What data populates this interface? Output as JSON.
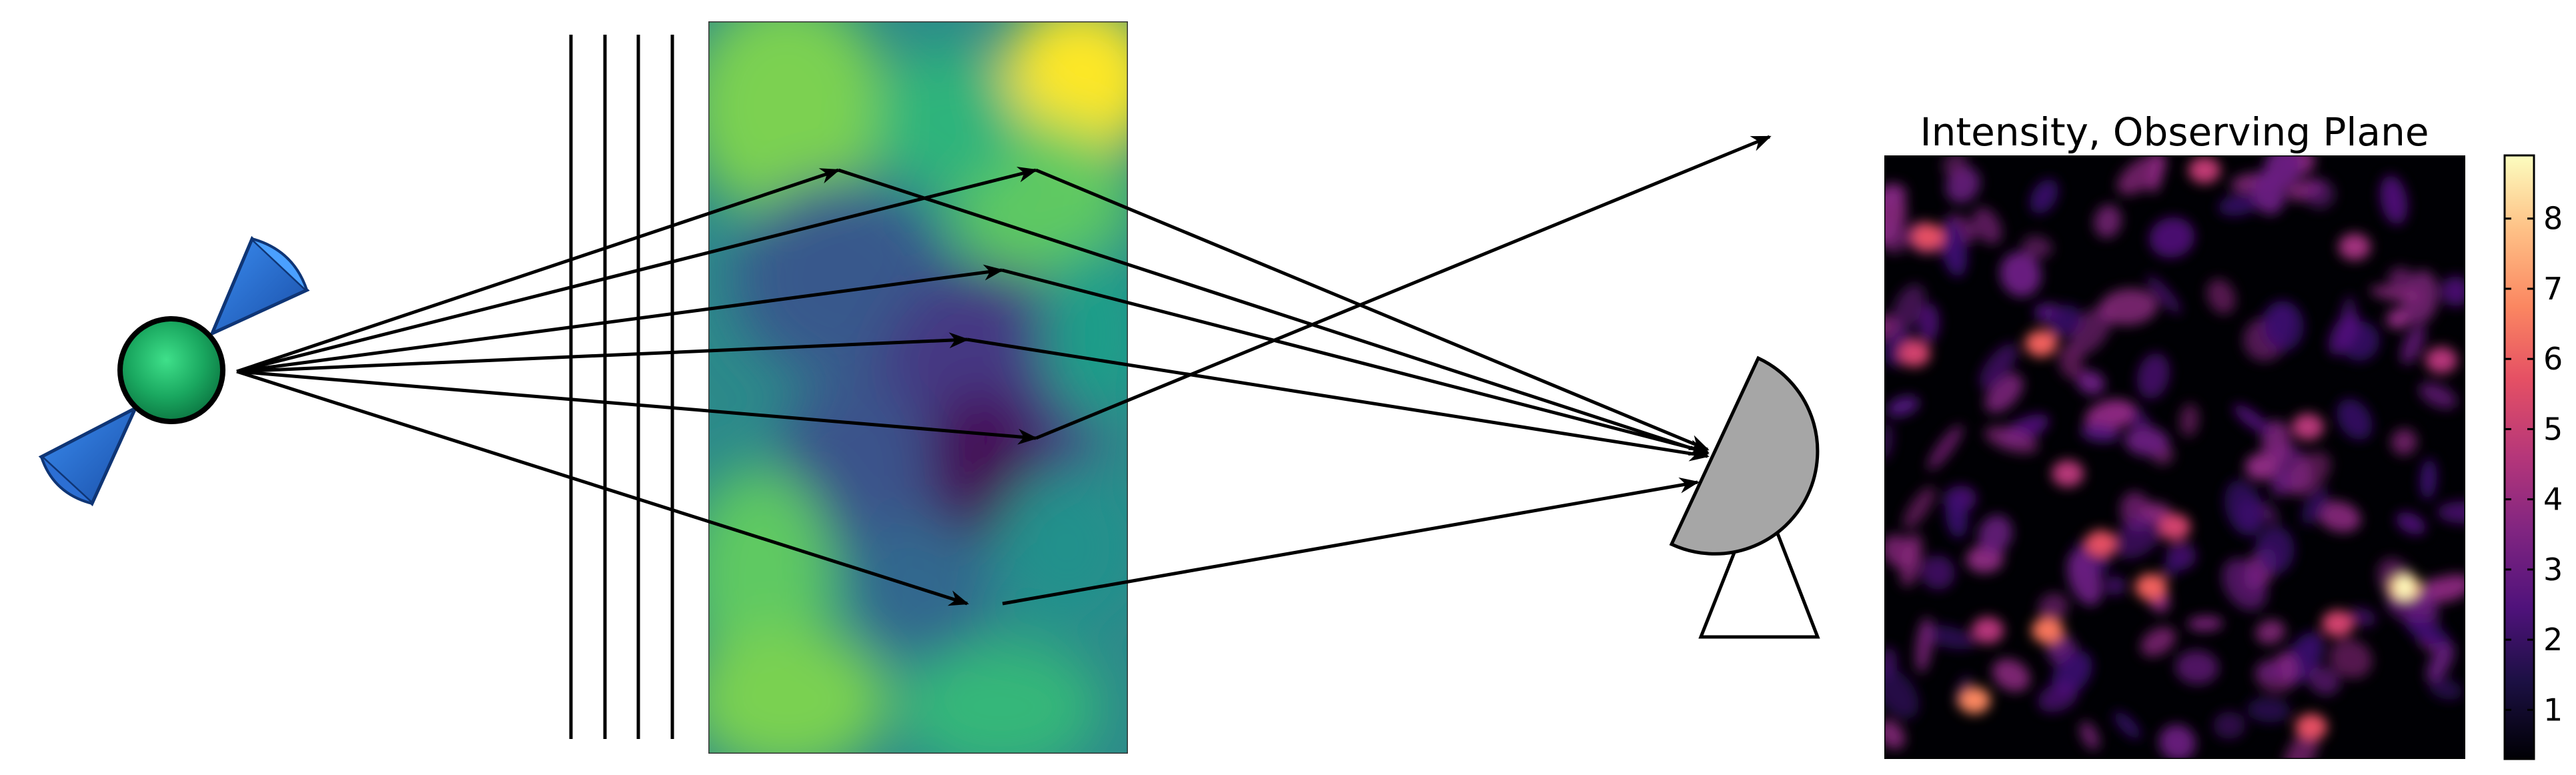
{
  "observing_plane": {
    "title": "Intensity, Observing Plane",
    "colorbar_ticks": [
      "1",
      "2",
      "3",
      "4",
      "5",
      "6",
      "7",
      "8"
    ],
    "colormap": "magma",
    "colorbar_range": [
      0.3,
      8.9
    ]
  },
  "screen": {
    "colormap": "viridis"
  },
  "colors": {
    "satellite_body": "#1aa860",
    "satellite_panels": "#1f5fbf",
    "telescope_dish": "#a6a6a6",
    "rays": "#000000"
  }
}
